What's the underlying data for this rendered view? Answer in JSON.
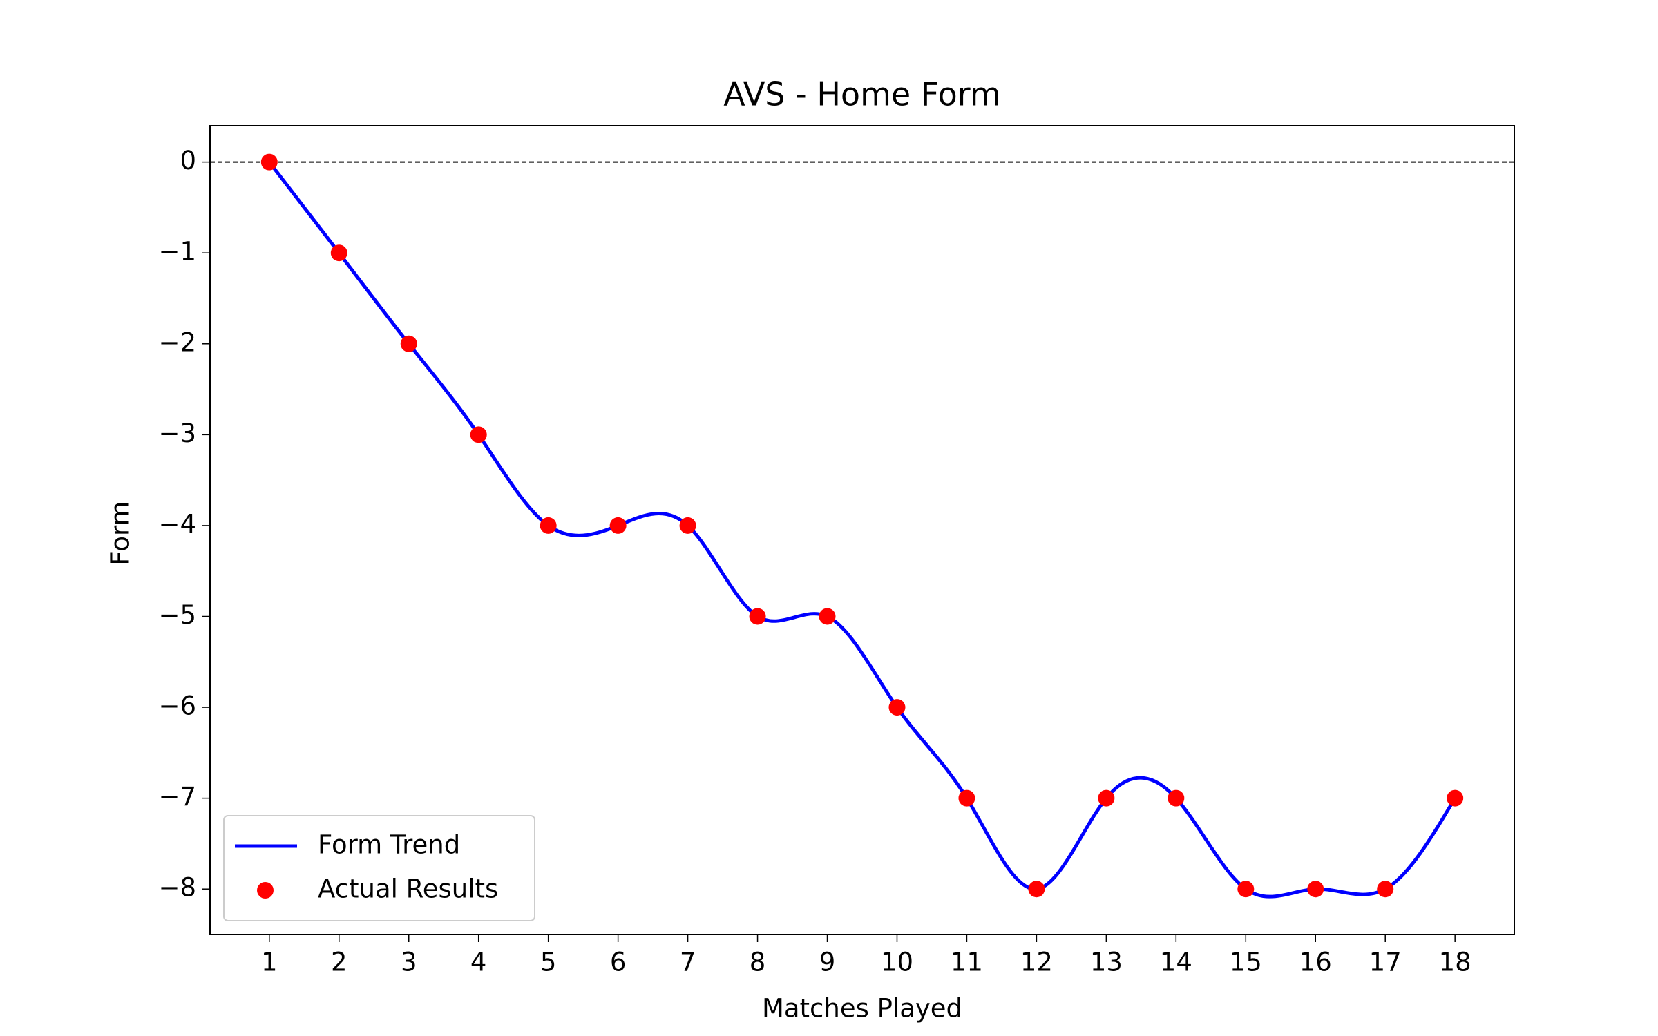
{
  "chart_data": {
    "type": "line",
    "title": "AVS - Home Form",
    "xlabel": "Matches Played",
    "ylabel": "Form",
    "x": [
      1,
      2,
      3,
      4,
      5,
      6,
      7,
      8,
      9,
      10,
      11,
      12,
      13,
      14,
      15,
      16,
      17,
      18
    ],
    "series": [
      {
        "name": "Form Trend",
        "color": "#0000ff",
        "style": "smooth-line",
        "values": [
          0,
          -1,
          -2,
          -3,
          -4,
          -4,
          -4,
          -5,
          -5,
          -6,
          -7,
          -8,
          -7,
          -7,
          -8,
          -8,
          -8,
          -7
        ]
      },
      {
        "name": "Actual Results",
        "color": "#ff0000",
        "style": "scatter",
        "values": [
          0,
          -1,
          -2,
          -3,
          -4,
          -4,
          -4,
          -5,
          -5,
          -6,
          -7,
          -8,
          -7,
          -7,
          -8,
          -8,
          -8,
          -7
        ]
      }
    ],
    "xlim": [
      0.15,
      18.85
    ],
    "ylim": [
      -8.5,
      0.4
    ],
    "xticks": [
      1,
      2,
      3,
      4,
      5,
      6,
      7,
      8,
      9,
      10,
      11,
      12,
      13,
      14,
      15,
      16,
      17,
      18
    ],
    "yticks": [
      0,
      {
        "value": -1,
        "label": "−1"
      },
      {
        "value": -2,
        "label": "−2"
      },
      {
        "value": -3,
        "label": "−3"
      },
      {
        "value": -4,
        "label": "−4"
      },
      {
        "value": -5,
        "label": "−5"
      },
      {
        "value": -6,
        "label": "−6"
      },
      {
        "value": -7,
        "label": "−7"
      },
      {
        "value": -8,
        "label": "−8"
      }
    ],
    "hline": 0,
    "legend": "lower left",
    "grid": false
  }
}
